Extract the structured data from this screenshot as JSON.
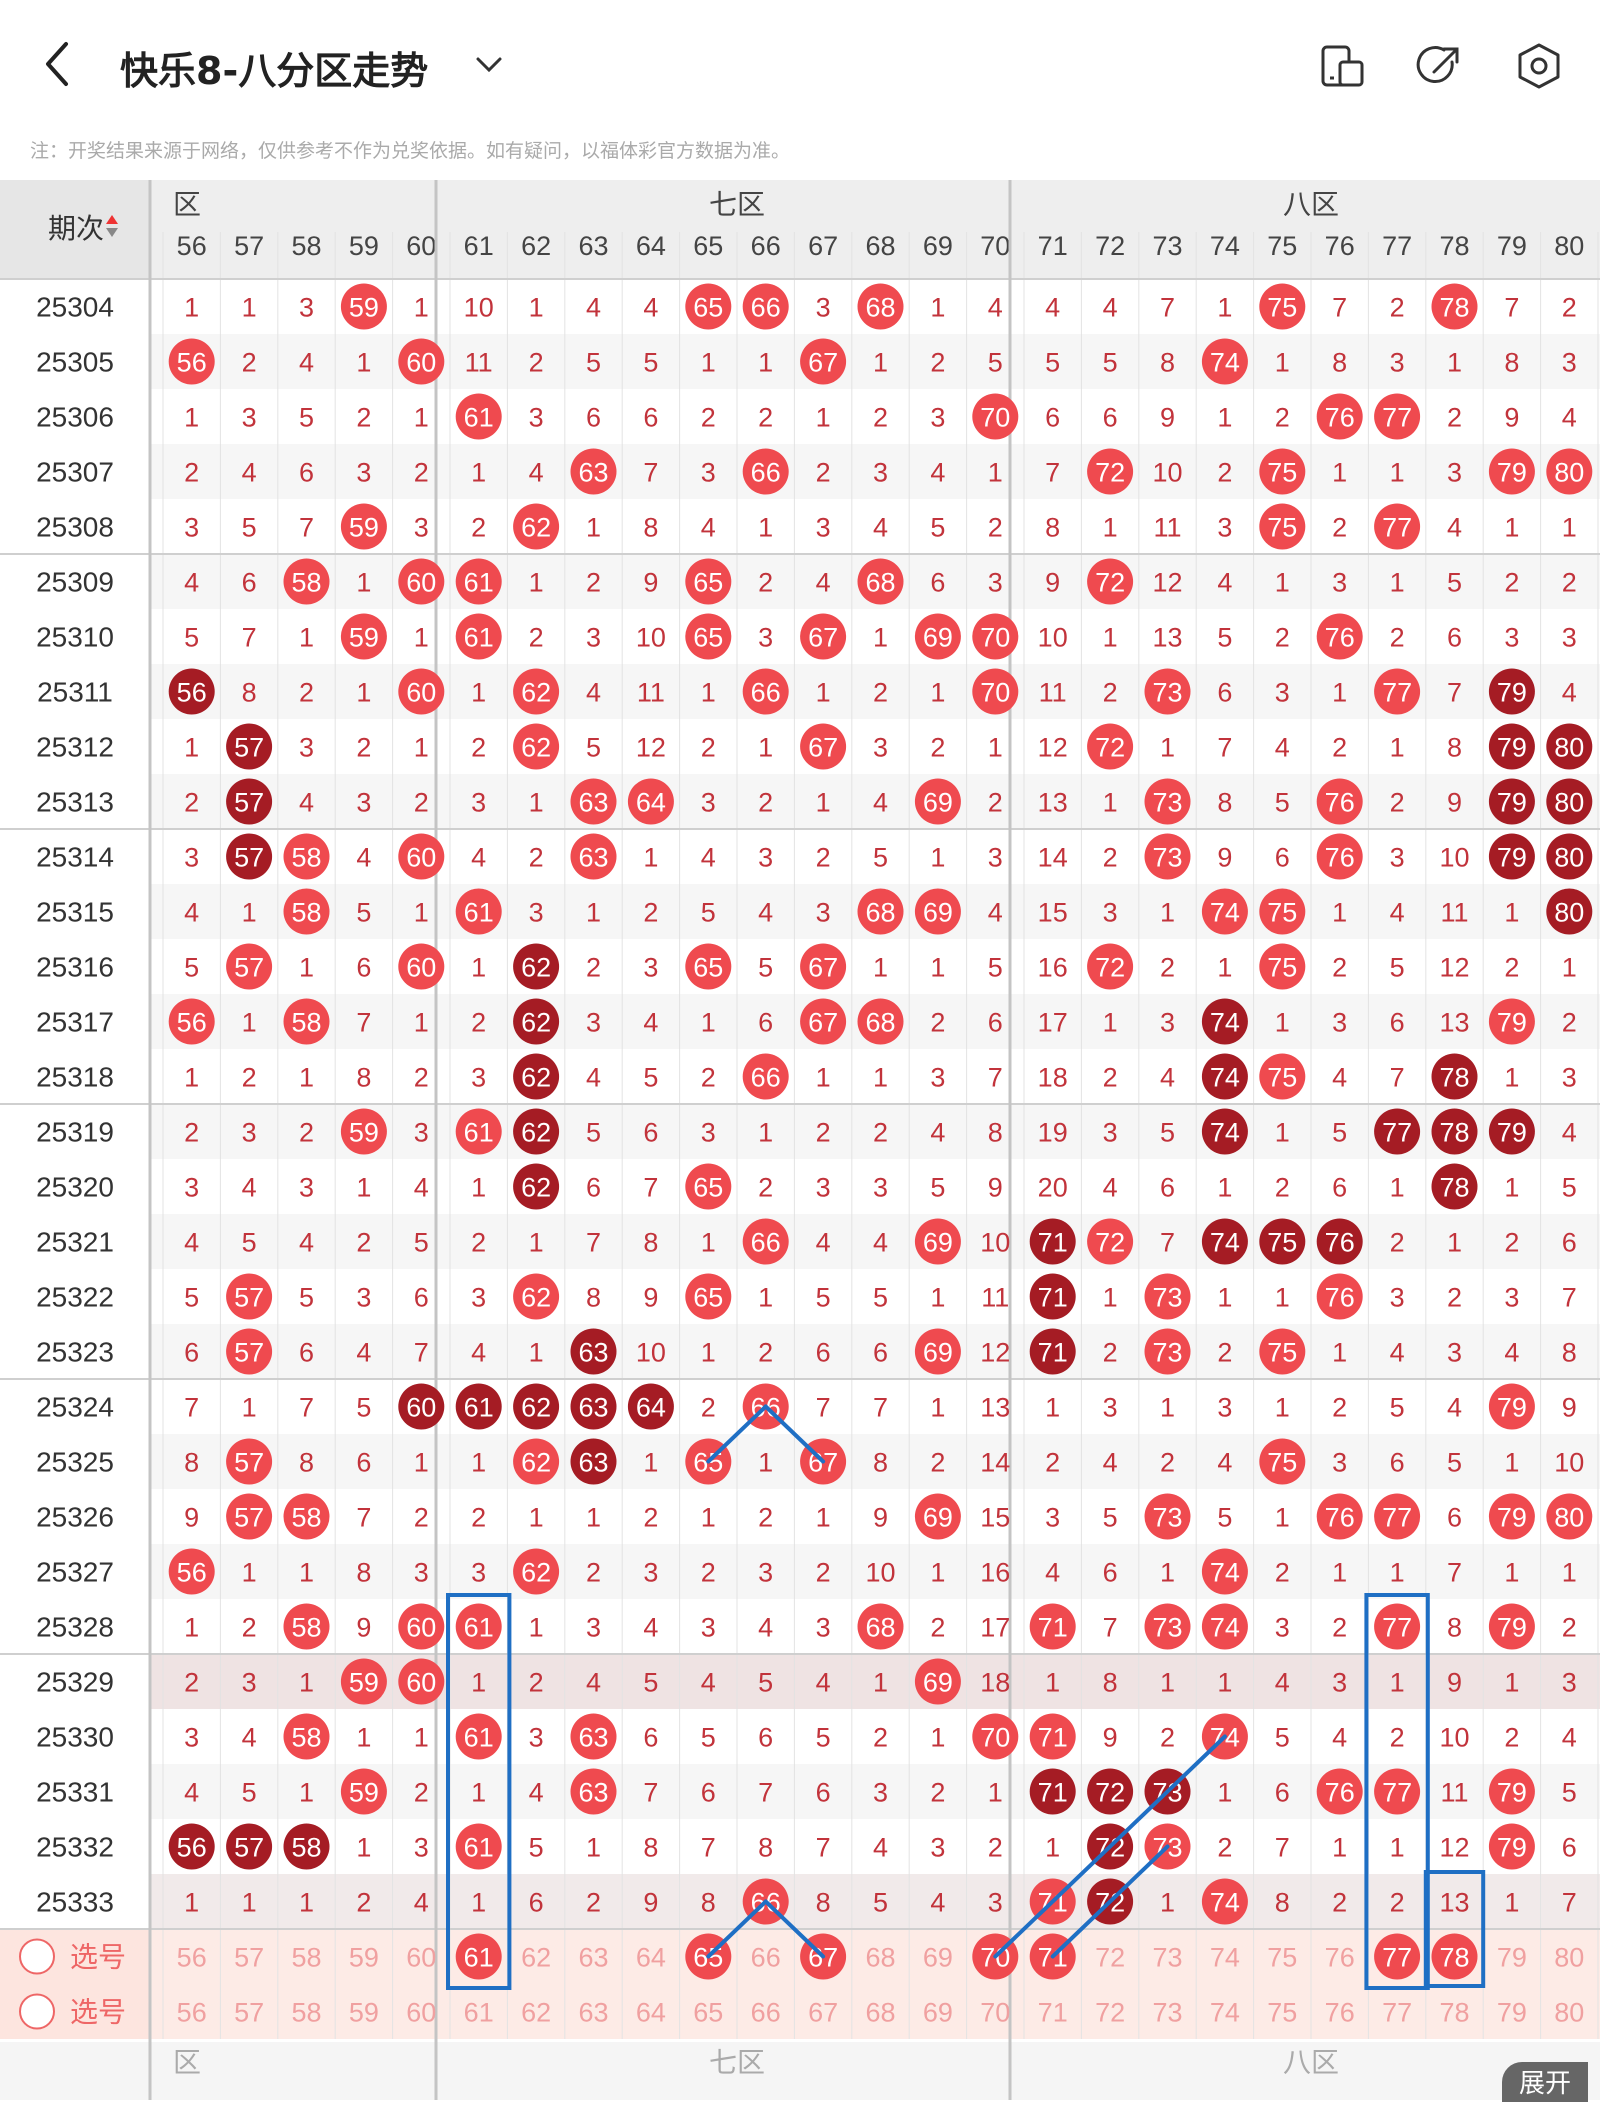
{
  "header": {
    "title": "快乐8-八分区走势",
    "icons": [
      "back-arrow-icon",
      "chevron-down-icon",
      "device-icon",
      "share-icon",
      "settings-icon"
    ]
  },
  "notice": "注：开奖结果来源于网络，仅供参考不作为兑奖依据。如有疑问，以福体彩官方数据为准。",
  "table": {
    "period_header": "期次",
    "zones": [
      "六区",
      "七区",
      "八区"
    ],
    "zone_labels_display": [
      "区",
      "七区",
      "八区"
    ],
    "columns": [
      56,
      57,
      58,
      59,
      60,
      61,
      62,
      63,
      64,
      65,
      66,
      67,
      68,
      69,
      70,
      71,
      72,
      73,
      74,
      75,
      76,
      77,
      78,
      79,
      80
    ],
    "rows": [
      {
        "period": "25304",
        "cells": [
          "1",
          "1",
          "3",
          "59",
          "1",
          "10",
          "1",
          "4",
          "4",
          "65",
          "66",
          "3",
          "68",
          "1",
          "4",
          "4",
          "4",
          "7",
          "1",
          "75",
          "7",
          "2",
          "78",
          "7",
          "2"
        ]
      },
      {
        "period": "25305",
        "cells": [
          "56",
          "2",
          "4",
          "1",
          "60",
          "11",
          "2",
          "5",
          "5",
          "1",
          "1",
          "67",
          "1",
          "2",
          "5",
          "5",
          "5",
          "8",
          "74",
          "1",
          "8",
          "3",
          "1",
          "8",
          "3"
        ]
      },
      {
        "period": "25306",
        "cells": [
          "1",
          "3",
          "5",
          "2",
          "1",
          "61",
          "3",
          "6",
          "6",
          "2",
          "2",
          "1",
          "2",
          "3",
          "70",
          "6",
          "6",
          "9",
          "1",
          "2",
          "76",
          "77",
          "2",
          "9",
          "4"
        ]
      },
      {
        "period": "25307",
        "cells": [
          "2",
          "4",
          "6",
          "3",
          "2",
          "1",
          "4",
          "63",
          "7",
          "3",
          "66",
          "2",
          "3",
          "4",
          "1",
          "7",
          "72",
          "10",
          "2",
          "75",
          "1",
          "1",
          "3",
          "79",
          "80"
        ]
      },
      {
        "period": "25308",
        "cells": [
          "3",
          "5",
          "7",
          "59",
          "3",
          "2",
          "62",
          "1",
          "8",
          "4",
          "1",
          "3",
          "4",
          "5",
          "2",
          "8",
          "1",
          "11",
          "3",
          "75",
          "2",
          "77",
          "4",
          "1",
          "1"
        ]
      },
      {
        "period": "25309",
        "cells": [
          "4",
          "6",
          "58",
          "1",
          "60",
          "61",
          "1",
          "2",
          "9",
          "65",
          "2",
          "4",
          "68",
          "6",
          "3",
          "9",
          "72",
          "12",
          "4",
          "1",
          "3",
          "1",
          "5",
          "2",
          "2"
        ]
      },
      {
        "period": "25310",
        "cells": [
          "5",
          "7",
          "1",
          "59",
          "1",
          "61",
          "2",
          "3",
          "10",
          "65",
          "3",
          "67",
          "1",
          "69",
          "70",
          "10",
          "1",
          "13",
          "5",
          "2",
          "76",
          "2",
          "6",
          "3",
          "3"
        ]
      },
      {
        "period": "25311",
        "cells": [
          "56",
          "8",
          "2",
          "1",
          "60",
          "1",
          "62",
          "4",
          "11",
          "1",
          "66",
          "1",
          "2",
          "1",
          "70",
          "11",
          "2",
          "73",
          "6",
          "3",
          "1",
          "77",
          "7",
          "79",
          "4"
        ]
      },
      {
        "period": "25312",
        "cells": [
          "1",
          "57",
          "3",
          "2",
          "1",
          "2",
          "62",
          "5",
          "12",
          "2",
          "1",
          "67",
          "3",
          "2",
          "1",
          "12",
          "72",
          "1",
          "7",
          "4",
          "2",
          "1",
          "8",
          "79",
          "80"
        ]
      },
      {
        "period": "25313",
        "cells": [
          "2",
          "57",
          "4",
          "3",
          "2",
          "3",
          "1",
          "63",
          "64",
          "3",
          "2",
          "1",
          "4",
          "69",
          "2",
          "13",
          "1",
          "73",
          "8",
          "5",
          "76",
          "2",
          "9",
          "79",
          "80"
        ]
      },
      {
        "period": "25314",
        "cells": [
          "3",
          "57",
          "58",
          "4",
          "60",
          "4",
          "2",
          "63",
          "1",
          "4",
          "3",
          "2",
          "5",
          "1",
          "3",
          "14",
          "2",
          "73",
          "9",
          "6",
          "76",
          "3",
          "10",
          "79",
          "80"
        ]
      },
      {
        "period": "25315",
        "cells": [
          "4",
          "1",
          "58",
          "5",
          "1",
          "61",
          "3",
          "1",
          "2",
          "5",
          "4",
          "3",
          "68",
          "69",
          "4",
          "15",
          "3",
          "1",
          "74",
          "75",
          "1",
          "4",
          "11",
          "1",
          "80"
        ]
      },
      {
        "period": "25316",
        "cells": [
          "5",
          "57",
          "1",
          "6",
          "60",
          "1",
          "62",
          "2",
          "3",
          "65",
          "5",
          "67",
          "1",
          "1",
          "5",
          "16",
          "72",
          "2",
          "1",
          "75",
          "2",
          "5",
          "12",
          "2",
          "1"
        ]
      },
      {
        "period": "25317",
        "cells": [
          "56",
          "1",
          "58",
          "7",
          "1",
          "2",
          "62",
          "3",
          "4",
          "1",
          "6",
          "67",
          "68",
          "2",
          "6",
          "17",
          "1",
          "3",
          "74",
          "1",
          "3",
          "6",
          "13",
          "79",
          "2"
        ]
      },
      {
        "period": "25318",
        "cells": [
          "1",
          "2",
          "1",
          "8",
          "2",
          "3",
          "62",
          "4",
          "5",
          "2",
          "66",
          "1",
          "1",
          "3",
          "7",
          "18",
          "2",
          "4",
          "74",
          "75",
          "4",
          "7",
          "78",
          "1",
          "3"
        ]
      },
      {
        "period": "25319",
        "cells": [
          "2",
          "3",
          "2",
          "59",
          "3",
          "61",
          "62",
          "5",
          "6",
          "3",
          "1",
          "2",
          "2",
          "4",
          "8",
          "19",
          "3",
          "5",
          "74",
          "1",
          "5",
          "77",
          "78",
          "79",
          "4"
        ]
      },
      {
        "period": "25320",
        "cells": [
          "3",
          "4",
          "3",
          "1",
          "4",
          "1",
          "62",
          "6",
          "7",
          "65",
          "2",
          "3",
          "3",
          "5",
          "9",
          "20",
          "4",
          "6",
          "1",
          "2",
          "6",
          "1",
          "78",
          "1",
          "5"
        ]
      },
      {
        "period": "25321",
        "cells": [
          "4",
          "5",
          "4",
          "2",
          "5",
          "2",
          "1",
          "7",
          "8",
          "1",
          "66",
          "4",
          "4",
          "69",
          "10",
          "71",
          "72",
          "7",
          "74",
          "75",
          "76",
          "2",
          "1",
          "2",
          "6"
        ]
      },
      {
        "period": "25322",
        "cells": [
          "5",
          "57",
          "5",
          "3",
          "6",
          "3",
          "62",
          "8",
          "9",
          "65",
          "1",
          "5",
          "5",
          "1",
          "11",
          "71",
          "1",
          "73",
          "1",
          "1",
          "76",
          "3",
          "2",
          "3",
          "7"
        ]
      },
      {
        "period": "25323",
        "cells": [
          "6",
          "57",
          "6",
          "4",
          "7",
          "4",
          "1",
          "63",
          "10",
          "1",
          "2",
          "6",
          "6",
          "69",
          "12",
          "71",
          "2",
          "73",
          "2",
          "75",
          "1",
          "4",
          "3",
          "4",
          "8"
        ]
      },
      {
        "period": "25324",
        "cells": [
          "7",
          "1",
          "7",
          "5",
          "60",
          "61",
          "62",
          "63",
          "64",
          "2",
          "66",
          "7",
          "7",
          "1",
          "13",
          "1",
          "3",
          "1",
          "3",
          "1",
          "2",
          "5",
          "4",
          "79",
          "9"
        ]
      },
      {
        "period": "25325",
        "cells": [
          "8",
          "57",
          "8",
          "6",
          "1",
          "1",
          "62",
          "63",
          "1",
          "65",
          "1",
          "67",
          "8",
          "2",
          "14",
          "2",
          "4",
          "2",
          "4",
          "75",
          "3",
          "6",
          "5",
          "1",
          "10"
        ]
      },
      {
        "period": "25326",
        "cells": [
          "9",
          "57",
          "58",
          "7",
          "2",
          "2",
          "1",
          "1",
          "2",
          "1",
          "2",
          "1",
          "9",
          "69",
          "15",
          "3",
          "5",
          "73",
          "5",
          "1",
          "76",
          "77",
          "6",
          "79",
          "80"
        ]
      },
      {
        "period": "25327",
        "cells": [
          "56",
          "1",
          "1",
          "8",
          "3",
          "3",
          "62",
          "2",
          "3",
          "2",
          "3",
          "2",
          "10",
          "1",
          "16",
          "4",
          "6",
          "1",
          "74",
          "2",
          "1",
          "1",
          "7",
          "1",
          "1"
        ]
      },
      {
        "period": "25328",
        "cells": [
          "1",
          "2",
          "58",
          "9",
          "60",
          "61",
          "1",
          "3",
          "4",
          "3",
          "4",
          "3",
          "68",
          "2",
          "17",
          "71",
          "7",
          "73",
          "74",
          "3",
          "2",
          "77",
          "8",
          "79",
          "2"
        ]
      },
      {
        "period": "25329",
        "cells": [
          "2",
          "3",
          "1",
          "59",
          "60",
          "1",
          "2",
          "4",
          "5",
          "4",
          "5",
          "4",
          "1",
          "69",
          "18",
          "1",
          "8",
          "1",
          "1",
          "4",
          "3",
          "1",
          "9",
          "1",
          "3"
        ]
      },
      {
        "period": "25330",
        "cells": [
          "3",
          "4",
          "58",
          "1",
          "1",
          "61",
          "3",
          "63",
          "6",
          "5",
          "6",
          "5",
          "2",
          "1",
          "70",
          "71",
          "9",
          "2",
          "74",
          "5",
          "4",
          "2",
          "10",
          "2",
          "4"
        ]
      },
      {
        "period": "25331",
        "cells": [
          "4",
          "5",
          "1",
          "59",
          "2",
          "1",
          "4",
          "63",
          "7",
          "6",
          "7",
          "6",
          "3",
          "2",
          "1",
          "71",
          "72",
          "73",
          "1",
          "6",
          "76",
          "77",
          "11",
          "79",
          "5"
        ]
      },
      {
        "period": "25332",
        "cells": [
          "56",
          "57",
          "58",
          "1",
          "3",
          "61",
          "5",
          "1",
          "8",
          "7",
          "8",
          "7",
          "4",
          "3",
          "2",
          "1",
          "72",
          "73",
          "2",
          "7",
          "1",
          "1",
          "12",
          "79",
          "6"
        ]
      },
      {
        "period": "25333",
        "cells": [
          "1",
          "1",
          "1",
          "2",
          "4",
          "1",
          "6",
          "2",
          "9",
          "8",
          "66",
          "8",
          "5",
          "4",
          "3",
          "71",
          "72",
          "1",
          "74",
          "8",
          "2",
          "2",
          "13",
          "1",
          "7"
        ]
      }
    ],
    "hit_styles": {
      "dark": [
        "25311-56",
        "25312-57",
        "25313-57",
        "25314-57",
        "25316-62",
        "25317-62",
        "25318-62",
        "25319-62",
        "25319-77",
        "25319-78",
        "25319-79",
        "25320-62",
        "25320-78",
        "25321-71",
        "25321-74",
        "25321-75",
        "25321-76",
        "25322-71",
        "25323-63",
        "25323-71",
        "25324-60",
        "25324-61",
        "25324-62",
        "25324-63",
        "25324-64",
        "25325-63",
        "25331-71",
        "25331-72",
        "25331-73",
        "25332-56",
        "25332-57",
        "25332-58",
        "25311-79",
        "25312-79",
        "25312-80",
        "25313-79",
        "25313-80",
        "25314-79",
        "25314-80",
        "25315-80",
        "25318-78",
        "25317-74",
        "25318-74",
        "25319-74",
        "25333-72",
        "25332-72"
      ]
    },
    "select_rows": [
      {
        "label": "选号",
        "values": [
          "56",
          "57",
          "58",
          "59",
          "60",
          "61",
          "62",
          "63",
          "64",
          "65",
          "66",
          "67",
          "68",
          "69",
          "70",
          "71",
          "72",
          "73",
          "74",
          "75",
          "76",
          "77",
          "78",
          "79",
          "80"
        ],
        "picked": [
          "61",
          "65",
          "67",
          "70",
          "71",
          "77",
          "78"
        ]
      },
      {
        "label": "选号",
        "values": [
          "56",
          "57",
          "58",
          "59",
          "60",
          "61",
          "62",
          "63",
          "64",
          "65",
          "66",
          "67",
          "68",
          "69",
          "70",
          "71",
          "72",
          "73",
          "74",
          "75",
          "76",
          "77",
          "78",
          "79",
          "80"
        ],
        "picked": []
      }
    ],
    "expand_label": "展开"
  },
  "colors": {
    "hit": "#ef4a4f",
    "hit_dark": "#a51c24",
    "miss_text": "#c2333b",
    "zone_line": "#bbbbbb",
    "annotation": "#1f6fc4"
  }
}
